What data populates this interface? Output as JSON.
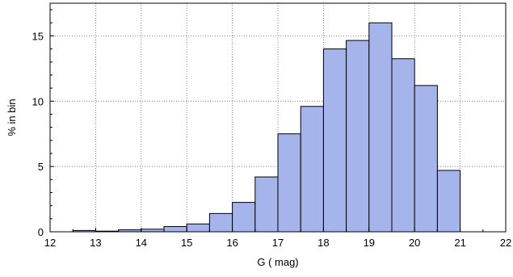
{
  "chart_data": {
    "type": "bar",
    "xlabel": "G ( mag)",
    "ylabel": "% in bin",
    "xlim": [
      12,
      22
    ],
    "ylim": [
      0,
      17.5
    ],
    "grid": true,
    "bin_width": 0.5,
    "x_ticks": [
      "12",
      "13",
      "14",
      "15",
      "16",
      "17",
      "18",
      "19",
      "20",
      "21",
      "22"
    ],
    "y_ticks": [
      "0",
      "5",
      "10",
      "15"
    ],
    "bar_fill": "#a6b4ec",
    "bar_edge": "#000000",
    "bins": [
      {
        "x0": 12.5,
        "x1": 13.0,
        "value": 0.1
      },
      {
        "x0": 13.0,
        "x1": 13.5,
        "value": 0.05
      },
      {
        "x0": 13.5,
        "x1": 14.0,
        "value": 0.15
      },
      {
        "x0": 14.0,
        "x1": 14.5,
        "value": 0.2
      },
      {
        "x0": 14.5,
        "x1": 15.0,
        "value": 0.4
      },
      {
        "x0": 15.0,
        "x1": 15.5,
        "value": 0.6
      },
      {
        "x0": 15.5,
        "x1": 16.0,
        "value": 1.4
      },
      {
        "x0": 16.0,
        "x1": 16.5,
        "value": 2.25
      },
      {
        "x0": 16.5,
        "x1": 17.0,
        "value": 4.2
      },
      {
        "x0": 17.0,
        "x1": 17.5,
        "value": 7.5
      },
      {
        "x0": 17.5,
        "x1": 18.0,
        "value": 9.6
      },
      {
        "x0": 18.0,
        "x1": 18.5,
        "value": 14.0
      },
      {
        "x0": 18.5,
        "x1": 19.0,
        "value": 14.65
      },
      {
        "x0": 19.0,
        "x1": 19.5,
        "value": 16.0
      },
      {
        "x0": 19.5,
        "x1": 20.0,
        "value": 13.25
      },
      {
        "x0": 20.0,
        "x1": 20.5,
        "value": 11.2
      },
      {
        "x0": 20.5,
        "x1": 21.0,
        "value": 4.7
      }
    ]
  }
}
